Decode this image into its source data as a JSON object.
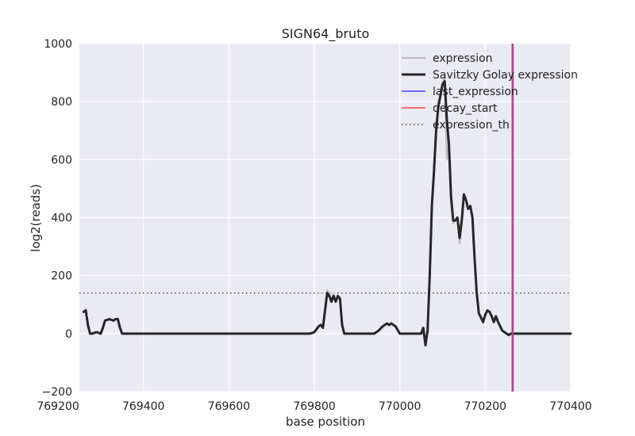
{
  "chart_data": {
    "type": "line",
    "title": "SIGN64_bruto",
    "xlabel": "base position",
    "ylabel": "log2(reads)",
    "xlim": [
      769250,
      770400
    ],
    "ylim": [
      -200,
      1000
    ],
    "x_ticks": [
      769200,
      769400,
      769600,
      769800,
      770000,
      770200,
      770400
    ],
    "x_tick_labels": [
      "769200",
      "769400",
      "769600",
      "769800",
      "770000",
      "770200",
      "770400"
    ],
    "y_ticks": [
      -200,
      0,
      200,
      400,
      600,
      800,
      1000
    ],
    "y_tick_labels": [
      "−200",
      "0",
      "200",
      "400",
      "600",
      "800",
      "1000"
    ],
    "grid": true,
    "legend_position": "top-right",
    "series": [
      {
        "name": "expression",
        "style": "solid",
        "color": "#bdbdbd",
        "x": [
          769260,
          769265,
          769270,
          769275,
          769280,
          769290,
          769300,
          769305,
          769310,
          769320,
          769330,
          769335,
          769340,
          769345,
          769350,
          769360,
          769400,
          769600,
          769790,
          769800,
          769810,
          769815,
          769820,
          769825,
          769830,
          769835,
          769840,
          769845,
          769850,
          769855,
          769860,
          769865,
          769870,
          769875,
          769880,
          769890,
          769900,
          769940,
          769950,
          769960,
          769970,
          769975,
          769980,
          769985,
          769990,
          770000,
          770020,
          770050,
          770055,
          770060,
          770065,
          770070,
          770075,
          770080,
          770085,
          770090,
          770095,
          770100,
          770105,
          770110,
          770115,
          770120,
          770125,
          770130,
          770135,
          770140,
          770145,
          770150,
          770155,
          770160,
          770165,
          770170,
          770175,
          770180,
          770185,
          770190,
          770195,
          770200,
          770205,
          770210,
          770215,
          770220,
          770225,
          770230,
          770240,
          770250,
          770255,
          770260,
          770265,
          770270,
          770280,
          770300,
          770400
        ],
        "y": [
          75,
          85,
          20,
          0,
          0,
          5,
          0,
          20,
          45,
          50,
          45,
          50,
          50,
          20,
          0,
          0,
          0,
          0,
          0,
          5,
          25,
          30,
          20,
          80,
          150,
          140,
          110,
          140,
          110,
          130,
          125,
          30,
          0,
          0,
          0,
          0,
          0,
          0,
          10,
          25,
          35,
          30,
          35,
          30,
          25,
          0,
          0,
          0,
          20,
          -30,
          10,
          200,
          430,
          550,
          700,
          800,
          820,
          860,
          890,
          600,
          650,
          450,
          380,
          390,
          390,
          310,
          380,
          480,
          460,
          430,
          440,
          400,
          260,
          140,
          70,
          60,
          35,
          65,
          80,
          75,
          60,
          40,
          60,
          40,
          10,
          0,
          -5,
          0,
          0,
          0,
          0,
          0,
          0
        ]
      },
      {
        "name": "Savitzky Golay expression",
        "style": "solid",
        "color": "#262626",
        "x": [
          769260,
          769265,
          769270,
          769275,
          769280,
          769290,
          769300,
          769305,
          769310,
          769320,
          769330,
          769335,
          769340,
          769345,
          769350,
          769360,
          769400,
          769600,
          769790,
          769800,
          769810,
          769815,
          769820,
          769825,
          769830,
          769835,
          769840,
          769845,
          769850,
          769855,
          769860,
          769865,
          769870,
          769875,
          769880,
          769890,
          769900,
          769940,
          769950,
          769960,
          769970,
          769975,
          769980,
          769985,
          769990,
          770000,
          770020,
          770050,
          770055,
          770060,
          770065,
          770070,
          770075,
          770080,
          770085,
          770090,
          770095,
          770100,
          770105,
          770110,
          770115,
          770120,
          770125,
          770130,
          770135,
          770140,
          770145,
          770150,
          770155,
          770160,
          770165,
          770170,
          770175,
          770180,
          770185,
          770190,
          770195,
          770200,
          770205,
          770210,
          770215,
          770220,
          770225,
          770230,
          770240,
          770250,
          770255,
          770260,
          770265,
          770270,
          770280,
          770300,
          770400
        ],
        "y": [
          75,
          80,
          30,
          0,
          0,
          5,
          0,
          20,
          45,
          50,
          45,
          50,
          50,
          20,
          0,
          0,
          0,
          0,
          0,
          5,
          25,
          30,
          20,
          80,
          140,
          130,
          110,
          130,
          110,
          130,
          120,
          30,
          0,
          0,
          0,
          0,
          0,
          0,
          10,
          25,
          35,
          30,
          35,
          30,
          25,
          0,
          0,
          0,
          20,
          -40,
          10,
          200,
          440,
          560,
          700,
          780,
          820,
          860,
          870,
          740,
          650,
          470,
          390,
          390,
          400,
          330,
          390,
          480,
          460,
          430,
          440,
          400,
          260,
          140,
          70,
          55,
          40,
          65,
          80,
          75,
          60,
          40,
          60,
          40,
          10,
          0,
          -5,
          0,
          0,
          0,
          0,
          0,
          0
        ]
      }
    ],
    "legend": [
      {
        "label": "expression",
        "color": "#bdbdbd",
        "style": "solid",
        "width": 2
      },
      {
        "label": "Savitzky Golay expression",
        "color": "#262626",
        "style": "solid",
        "width": 3
      },
      {
        "label": "last_expression",
        "color": "#6b6bf0",
        "style": "solid",
        "width": 2
      },
      {
        "label": "decay_start",
        "color": "#f07070",
        "style": "solid",
        "width": 2
      },
      {
        "label": "expression_th",
        "color": "#333333",
        "style": "dotted",
        "width": 1.5
      }
    ],
    "threshold": {
      "name": "expression_th",
      "y": 140
    },
    "vertical_lines": [
      {
        "name": "last_expression",
        "x": 770264
      },
      {
        "name": "decay_start",
        "x": 770264
      }
    ],
    "vertical_line_color": "#b0478c"
  }
}
